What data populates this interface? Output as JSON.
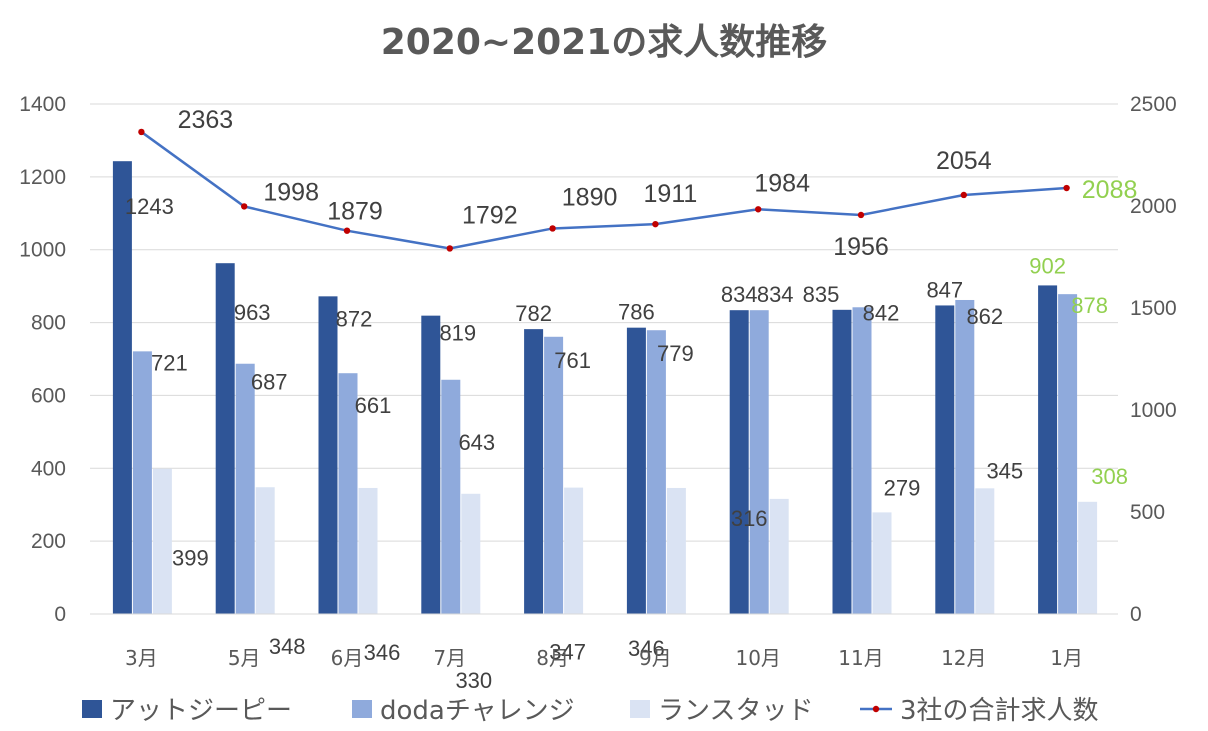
{
  "chart_data": {
    "type": "bar",
    "title": "2020~2021の求人数推移",
    "categories": [
      "3月",
      "5月",
      "6月",
      "7月",
      "8月",
      "9月",
      "10月",
      "11月",
      "12月",
      "1月"
    ],
    "series": [
      {
        "name": "アットジーピー",
        "kind": "bar",
        "axis": "left",
        "color": "#2f5597",
        "values": [
          1243,
          963,
          872,
          819,
          782,
          786,
          834,
          835,
          847,
          902
        ]
      },
      {
        "name": "dodaチャレンジ",
        "kind": "bar",
        "axis": "left",
        "color": "#8faadc",
        "values": [
          721,
          687,
          661,
          643,
          761,
          779,
          834,
          842,
          862,
          878
        ]
      },
      {
        "name": "ランスタッド",
        "kind": "bar",
        "axis": "left",
        "color": "#dae3f3",
        "values": [
          399,
          348,
          346,
          330,
          347,
          346,
          316,
          279,
          345,
          308
        ]
      },
      {
        "name": "3社の合計求人数",
        "kind": "line",
        "axis": "right",
        "color": "#4472c4",
        "marker_color": "#c00000",
        "values": [
          2363,
          1998,
          1879,
          1792,
          1890,
          1911,
          1984,
          1956,
          2054,
          2088
        ]
      }
    ],
    "y_left": {
      "min": 0,
      "max": 1400,
      "ticks": [
        "0",
        "200",
        "400",
        "600",
        "800",
        "1000",
        "1200",
        "1400"
      ]
    },
    "y_right": {
      "min": 0,
      "max": 2500,
      "ticks": [
        "0",
        "500",
        "1000",
        "1500",
        "2000",
        "2500"
      ]
    },
    "grid": true,
    "legend_position": "bottom",
    "highlight_color": "#92d050"
  }
}
